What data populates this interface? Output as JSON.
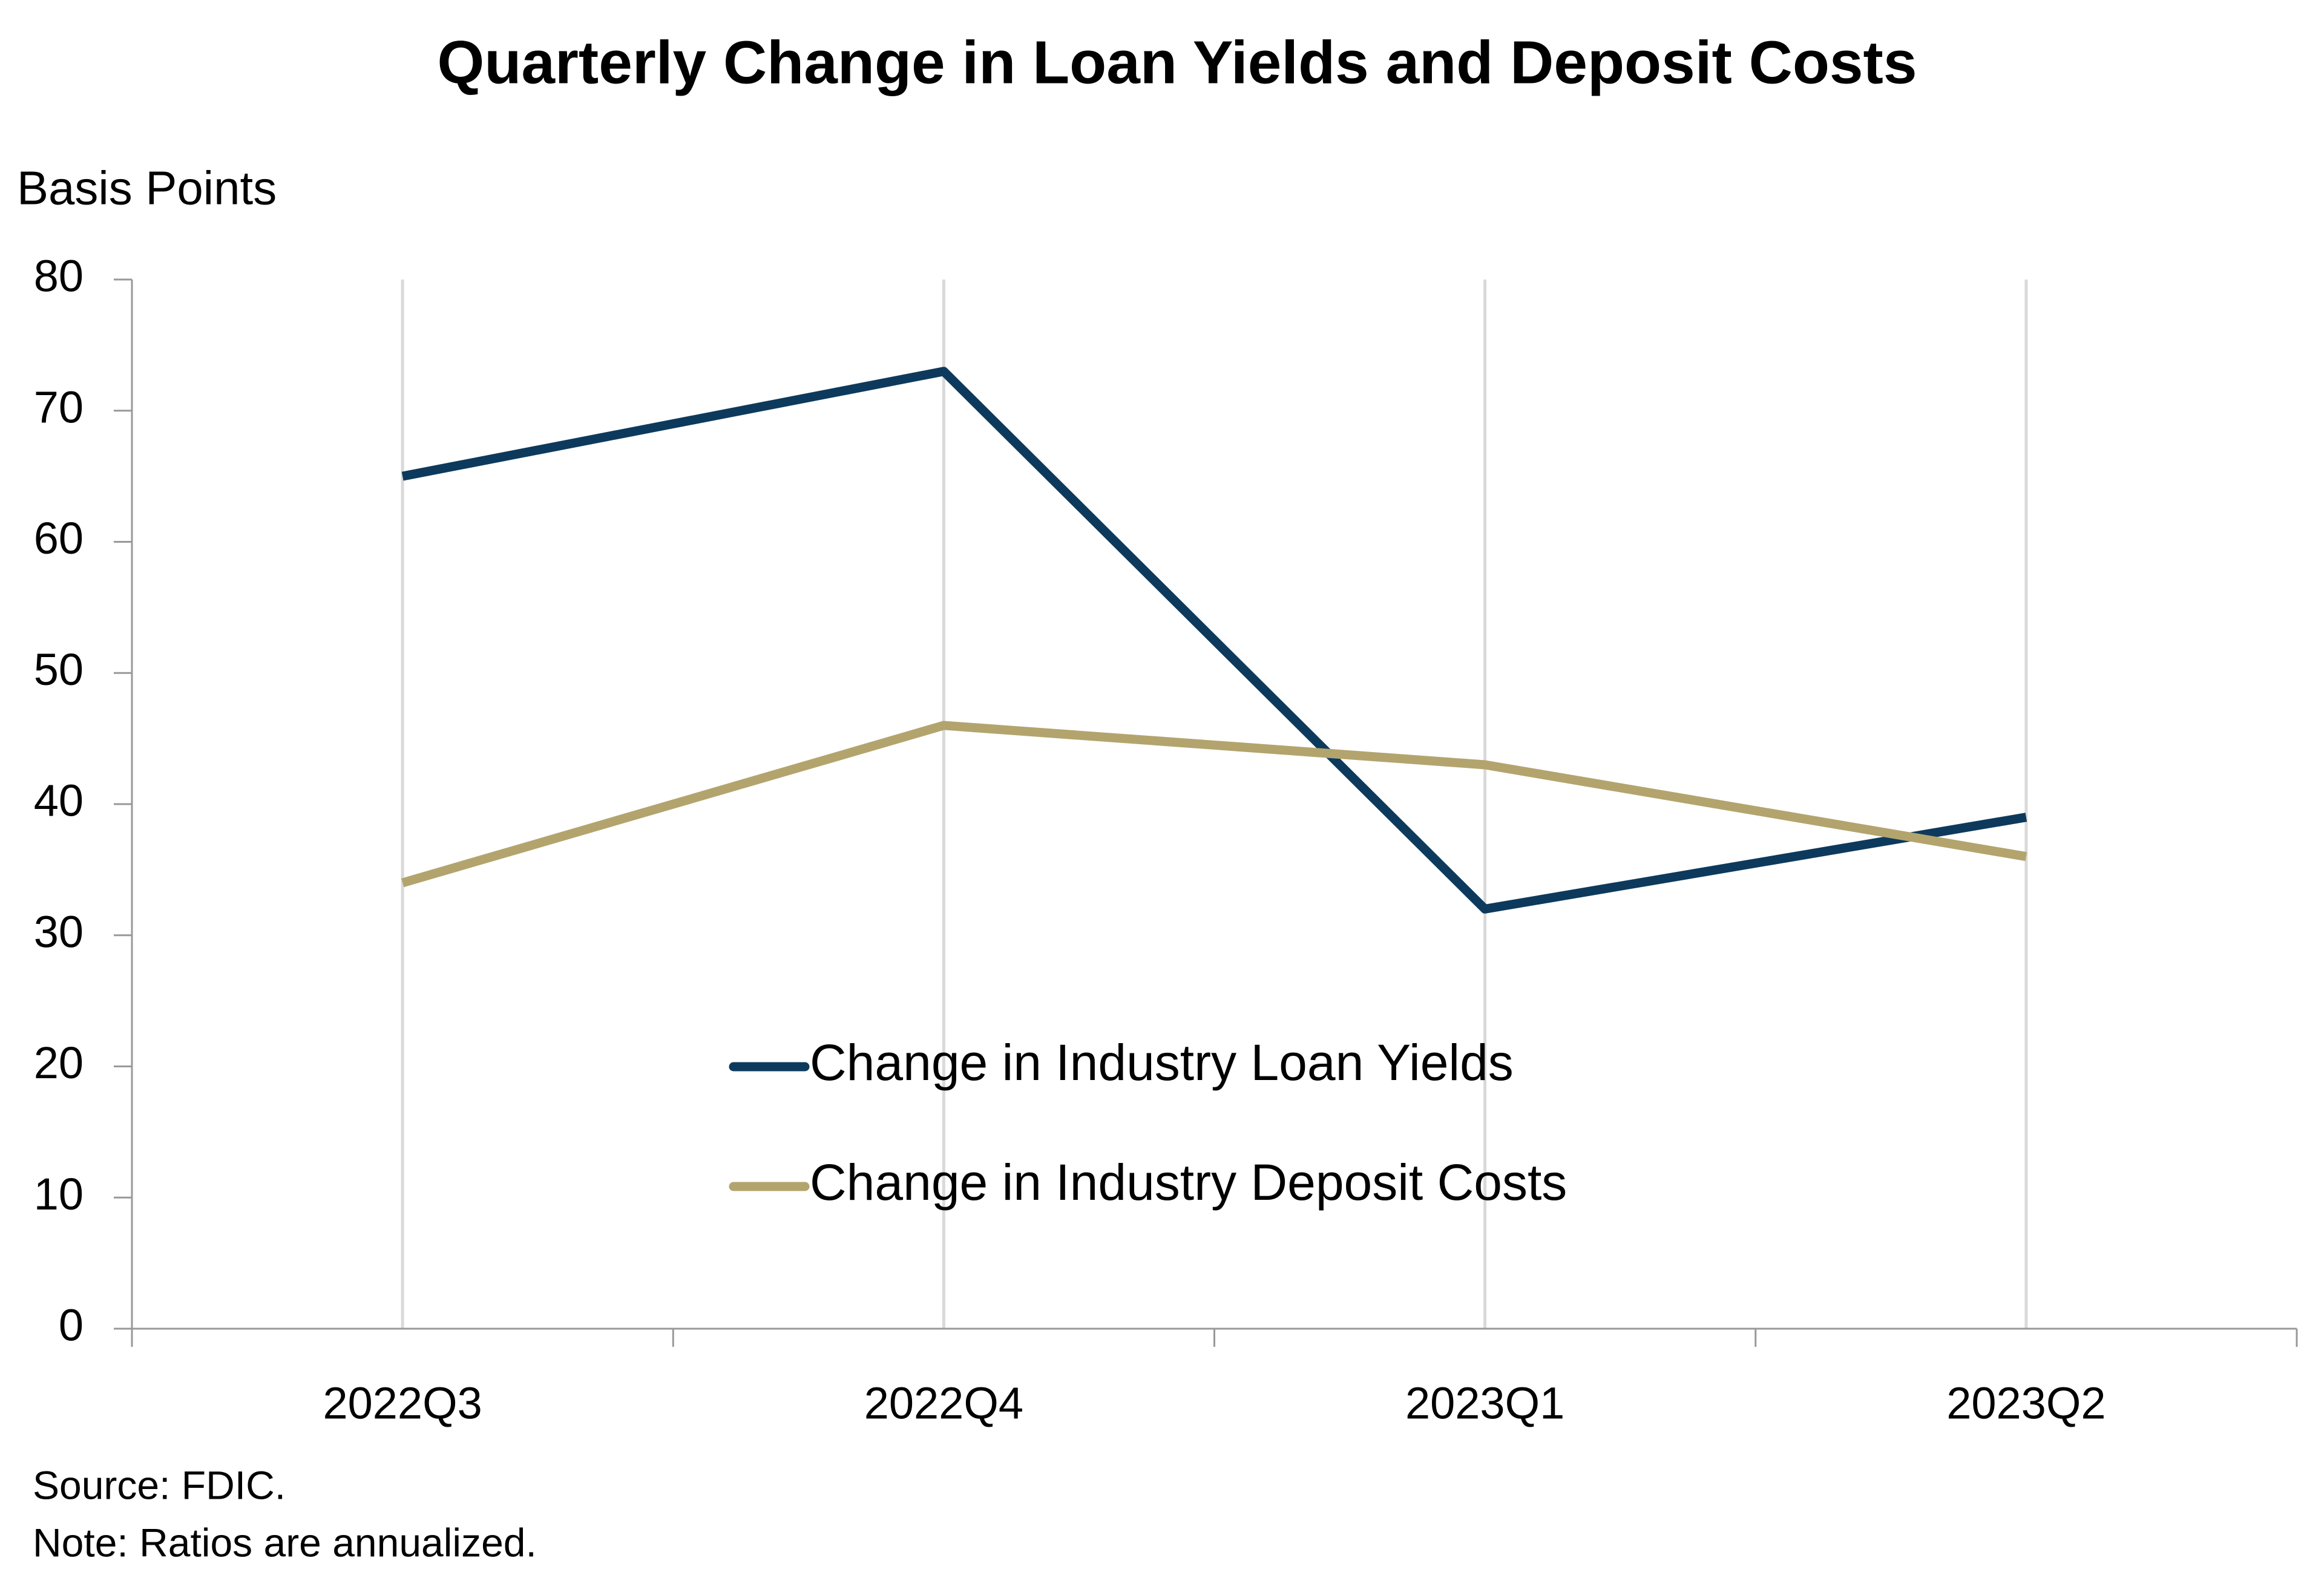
{
  "chart_data": {
    "type": "line",
    "title": "Quarterly Change in Loan Yields and Deposit Costs",
    "y_label": "Basis Points",
    "categories": [
      "2022Q3",
      "2022Q4",
      "2023Q1",
      "2023Q2"
    ],
    "series": [
      {
        "name": "Change in Industry Loan Yields",
        "color": "#0d3a5c",
        "values": [
          65,
          73,
          32,
          39
        ]
      },
      {
        "name": "Change in Industry Deposit Costs",
        "color": "#b3a46e",
        "values": [
          34,
          46,
          43,
          36
        ]
      }
    ],
    "ylim": [
      0,
      80
    ],
    "yticks": [
      0,
      10,
      20,
      30,
      40,
      50,
      60,
      70,
      80
    ],
    "grid": "x",
    "legend": "center",
    "source": "Source: FDIC.",
    "note": "Note: Ratios are annualized."
  }
}
